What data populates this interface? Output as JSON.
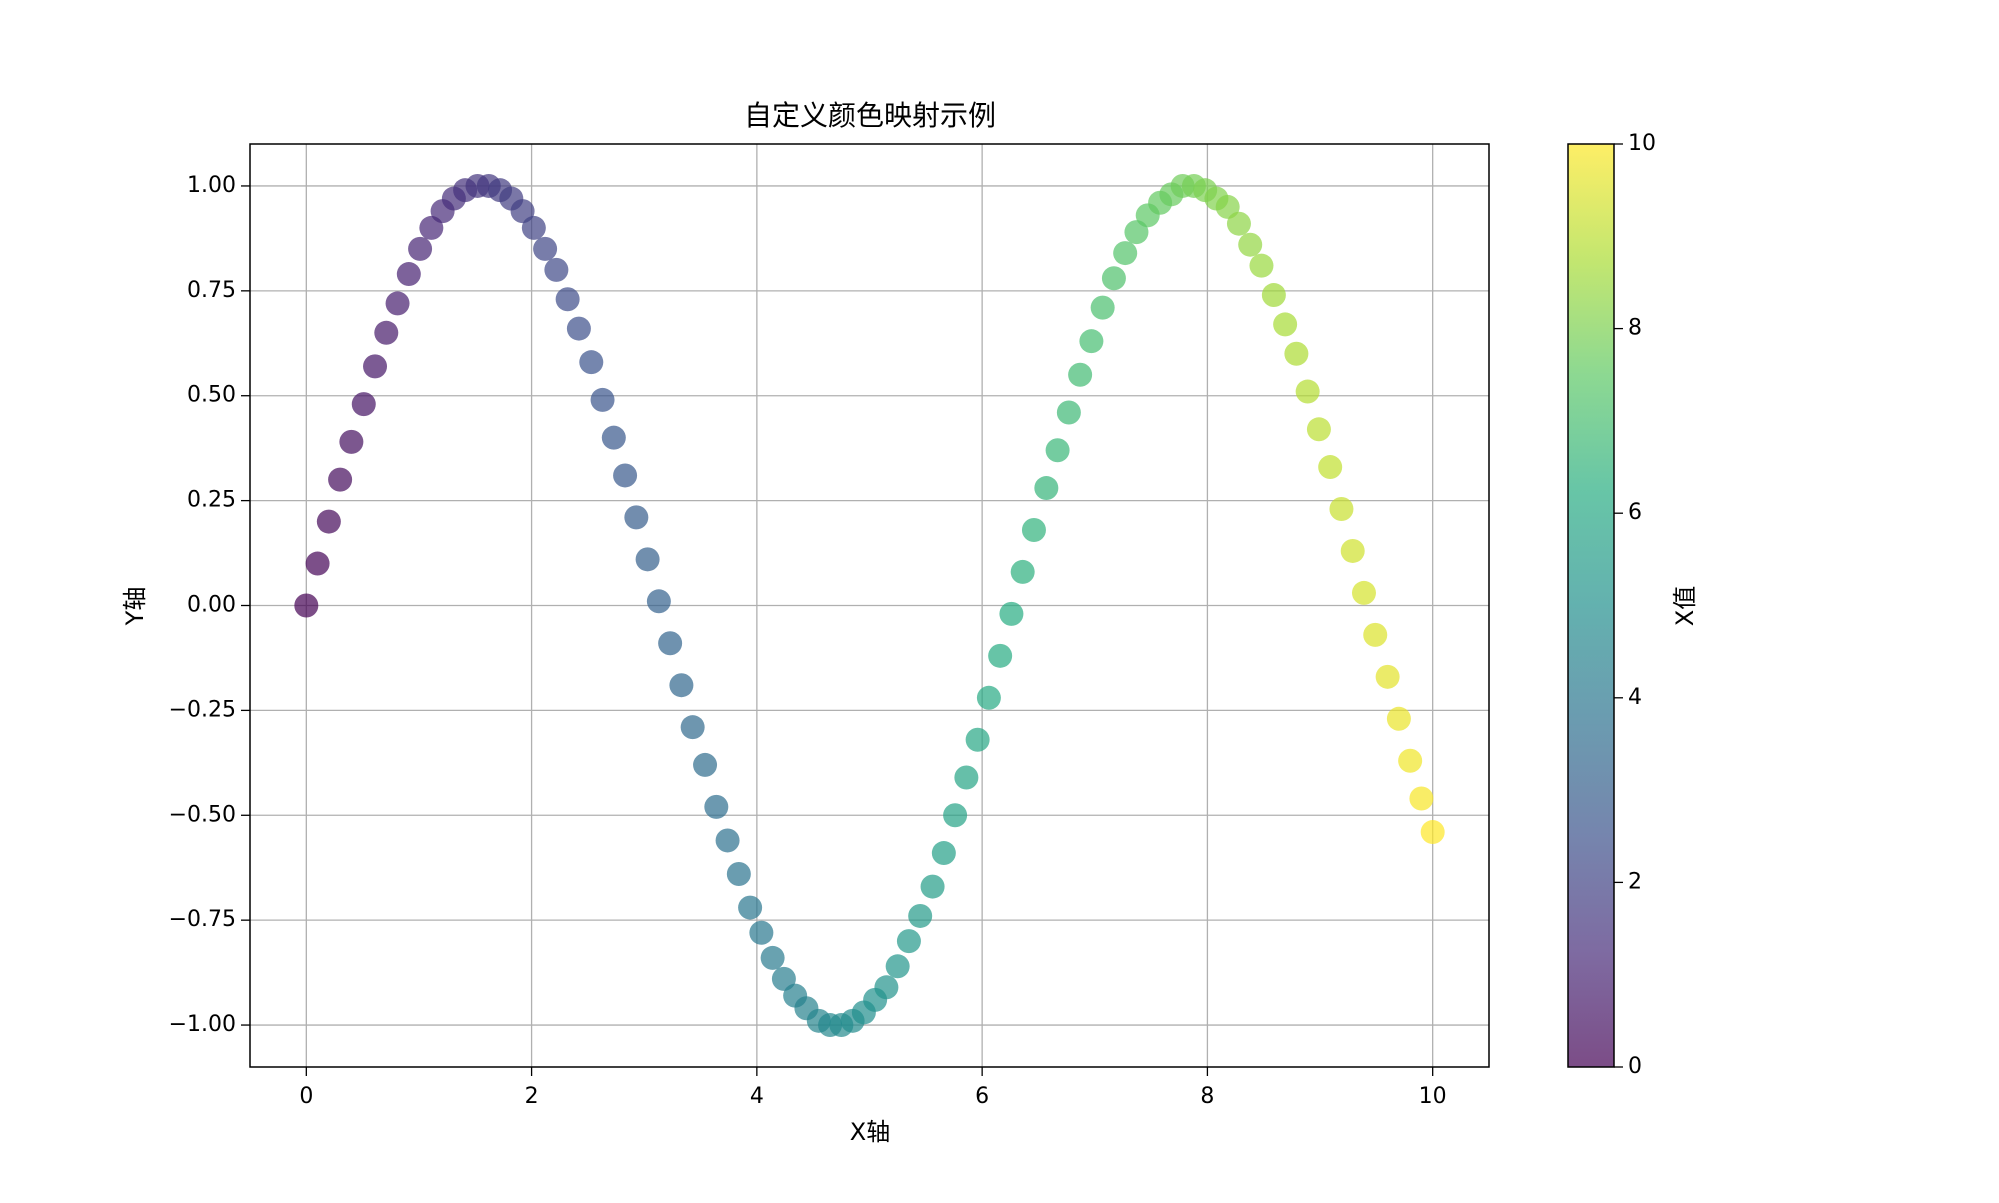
{
  "chart_data": {
    "type": "scatter",
    "title": "自定义颜色映射示例",
    "xlabel": "X轴",
    "ylabel": "Y轴",
    "x": [
      0.0,
      0.1,
      0.2,
      0.3,
      0.4,
      0.51,
      0.61,
      0.71,
      0.81,
      0.91,
      1.01,
      1.11,
      1.21,
      1.31,
      1.41,
      1.52,
      1.62,
      1.72,
      1.82,
      1.92,
      2.02,
      2.12,
      2.22,
      2.32,
      2.42,
      2.53,
      2.63,
      2.73,
      2.83,
      2.93,
      3.03,
      3.13,
      3.23,
      3.33,
      3.43,
      3.54,
      3.64,
      3.74,
      3.84,
      3.94,
      4.04,
      4.14,
      4.24,
      4.34,
      4.44,
      4.55,
      4.65,
      4.75,
      4.85,
      4.95,
      5.05,
      5.15,
      5.25,
      5.35,
      5.45,
      5.56,
      5.66,
      5.76,
      5.86,
      5.96,
      6.06,
      6.16,
      6.26,
      6.36,
      6.46,
      6.57,
      6.67,
      6.77,
      6.87,
      6.97,
      7.07,
      7.17,
      7.27,
      7.37,
      7.47,
      7.58,
      7.68,
      7.78,
      7.88,
      7.98,
      8.08,
      8.18,
      8.28,
      8.38,
      8.48,
      8.59,
      8.69,
      8.79,
      8.89,
      8.99,
      9.09,
      9.19,
      9.29,
      9.39,
      9.49,
      9.6,
      9.7,
      9.8,
      9.9,
      10.0
    ],
    "values": [
      0.0,
      0.1,
      0.2,
      0.3,
      0.39,
      0.48,
      0.57,
      0.65,
      0.72,
      0.79,
      0.85,
      0.9,
      0.94,
      0.97,
      0.99,
      1.0,
      1.0,
      0.99,
      0.97,
      0.94,
      0.9,
      0.85,
      0.8,
      0.73,
      0.66,
      0.58,
      0.49,
      0.4,
      0.31,
      0.21,
      0.11,
      0.01,
      -0.09,
      -0.19,
      -0.29,
      -0.38,
      -0.48,
      -0.56,
      -0.64,
      -0.72,
      -0.78,
      -0.84,
      -0.89,
      -0.93,
      -0.96,
      -0.99,
      -1.0,
      -1.0,
      -0.99,
      -0.97,
      -0.94,
      -0.91,
      -0.86,
      -0.8,
      -0.74,
      -0.67,
      -0.59,
      -0.5,
      -0.41,
      -0.32,
      -0.22,
      -0.12,
      -0.02,
      0.08,
      0.18,
      0.28,
      0.37,
      0.46,
      0.55,
      0.63,
      0.71,
      0.78,
      0.84,
      0.89,
      0.93,
      0.96,
      0.98,
      1.0,
      1.0,
      0.99,
      0.97,
      0.95,
      0.91,
      0.86,
      0.81,
      0.74,
      0.67,
      0.6,
      0.51,
      0.42,
      0.33,
      0.23,
      0.13,
      0.03,
      -0.07,
      -0.17,
      -0.27,
      -0.37,
      -0.46,
      -0.54
    ],
    "xlim": [
      -0.5,
      10.5
    ],
    "xticks": [
      0,
      2,
      4,
      6,
      8,
      10
    ],
    "ylim": [
      -1.1,
      1.1
    ],
    "yticks": [
      {
        "value": -1,
        "label": "−1.00"
      },
      {
        "value": -0.75,
        "label": "−0.75"
      },
      {
        "value": -0.5,
        "label": "−0.50"
      },
      {
        "value": -0.25,
        "label": "−0.25"
      },
      {
        "value": 0,
        "label": "0.00"
      },
      0.25,
      {
        "value": 0.5,
        "label": "0.50"
      },
      0.75,
      {
        "value": 1,
        "label": "1.00"
      }
    ],
    "grid": true,
    "alpha": 0.7,
    "colormap": [
      "#440154",
      "#472c7a",
      "#3b518b",
      "#2c718e",
      "#21908d",
      "#27ad81",
      "#5cc863",
      "#aadc32",
      "#fde725"
    ],
    "colorbar": {
      "label": "X值",
      "clim": [
        0,
        10
      ],
      "ticks": [
        0,
        2,
        4,
        6,
        8,
        10
      ]
    }
  }
}
